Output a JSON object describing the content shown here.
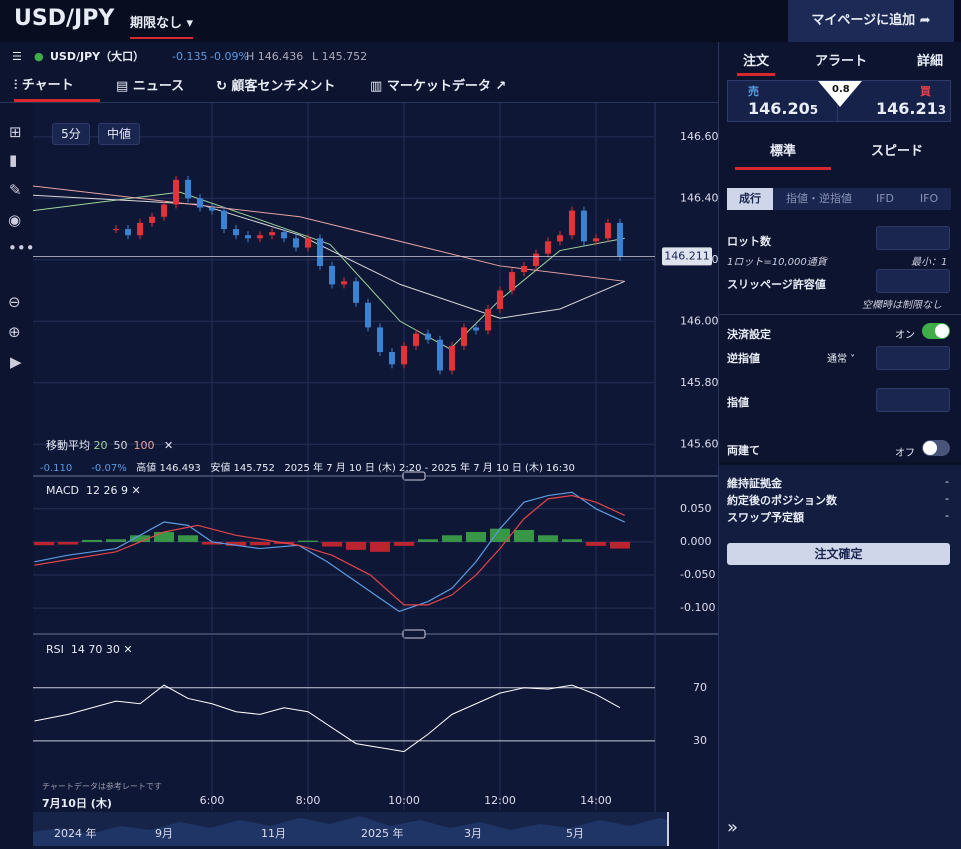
{
  "header": {
    "symbol": "USD/JPY",
    "period": "期限なし",
    "button": "マイページに追加"
  },
  "subbar": {
    "symbol": "USD/JPY（大口）",
    "change": "-0.135",
    "change_pct": "-0.09%",
    "high": "H 146.436",
    "low": "L 145.752"
  },
  "tabs": [
    "チャート",
    "ニュース",
    "顧客センチメント",
    "マーケットデータ"
  ],
  "chart_overlay": {
    "interval": "5分",
    "price_type": "中値",
    "ma_label": "移動平均",
    "info_change": "-0.110",
    "info_pct": "-0.07%",
    "info_high": "高値 146.493",
    "info_low": "安値 145.752",
    "info_range": "2025 年 7 月 10 日 (木) 2:20 - 2025 年 7 月 10 日 (木) 16:30",
    "macd_label": "MACD",
    "macd_params": "12  26  9",
    "rsi_label": "RSI",
    "rsi_params": "14  70  30",
    "note": "チャートデータは参考レートです",
    "date_label": "7月10日 (木)"
  },
  "navigator": [
    "2024 年",
    "9月",
    "11月",
    "2025 年",
    "3月",
    "5月"
  ],
  "chart_data": [
    {
      "type": "candlestick",
      "xlim": [
        2.27,
        15.23
      ],
      "ylim": [
        145.5,
        146.71
      ],
      "xticks": [
        {
          "value": 6,
          "label": "6:00"
        },
        {
          "value": 8,
          "label": "8:00"
        },
        {
          "value": 10,
          "label": "10:00"
        },
        {
          "value": 12,
          "label": "12:00"
        },
        {
          "value": 14,
          "label": "14:00"
        }
      ],
      "yticks": [
        {
          "value": 145.6,
          "label": "145.600"
        },
        {
          "value": 145.8,
          "label": "145.800"
        },
        {
          "value": 146.0,
          "label": "146.000"
        },
        {
          "value": 146.2,
          "label": "146.200"
        },
        {
          "value": 146.4,
          "label": "146.400"
        },
        {
          "value": 146.6,
          "label": "146.600"
        }
      ],
      "grid": true,
      "last_price": {
        "value": 146.211,
        "label": "146.211"
      },
      "x": [
        4,
        4.25,
        4.5,
        4.75,
        5,
        5.25,
        5.5,
        5.75,
        6,
        6.25,
        6.5,
        6.75,
        7,
        7.25,
        7.5,
        7.75,
        8,
        8.25,
        8.5,
        8.75,
        9,
        9.25,
        9.5,
        9.75,
        10,
        10.25,
        10.5,
        10.75,
        11,
        11.25,
        11.5,
        11.75,
        12,
        12.25,
        12.5,
        12.75,
        13,
        13.25,
        13.5,
        13.75,
        14,
        14.25,
        14.5
      ],
      "up_color": "#e0333a",
      "down_color": "#3b82d0",
      "values": [
        146.3,
        146.28,
        146.32,
        146.34,
        146.38,
        146.46,
        146.4,
        146.37,
        146.36,
        146.3,
        146.28,
        146.27,
        146.28,
        146.29,
        146.27,
        146.24,
        146.27,
        146.18,
        146.12,
        146.13,
        146.06,
        145.98,
        145.9,
        145.86,
        145.92,
        145.96,
        145.94,
        145.84,
        145.92,
        145.98,
        145.97,
        146.04,
        146.1,
        146.16,
        146.18,
        146.22,
        146.26,
        146.28,
        146.36,
        146.26,
        146.27,
        146.32,
        146.21
      ],
      "series": [
        {
          "name": "20",
          "color": "#9fd39b",
          "x": [
            2.27,
            5.33,
            7.0,
            8.46,
            9.92,
            10.96,
            12,
            13.25,
            14.6
          ],
          "values": [
            146.36,
            146.42,
            146.33,
            146.25,
            146.0,
            145.91,
            146.07,
            146.23,
            146.27
          ]
        },
        {
          "name": "50",
          "color": "#d8d8d8",
          "x": [
            2.27,
            5.75,
            7.83,
            9.92,
            12,
            13.25,
            14.6
          ],
          "values": [
            146.41,
            146.38,
            146.28,
            146.12,
            146.01,
            146.04,
            146.13
          ]
        },
        {
          "name": "100",
          "color": "#e5a3a3",
          "x": [
            2.27,
            7.83,
            12,
            14.6
          ],
          "values": [
            146.44,
            146.34,
            146.18,
            146.13
          ]
        }
      ]
    },
    {
      "type": "macd",
      "xlim": [
        2.27,
        15.23
      ],
      "ylim": [
        -0.136,
        0.098
      ],
      "yticks": [
        {
          "value": 0.05,
          "label": "0.050"
        },
        {
          "value": 0,
          "label": "0.000"
        },
        {
          "value": -0.05,
          "label": "-0.050"
        },
        {
          "value": -0.1,
          "label": "-0.100"
        }
      ],
      "series": [
        {
          "kind": "bar",
          "up_color": "#3fae49",
          "down_color": "#d8282e",
          "x": [
            2.5,
            3,
            3.5,
            4,
            4.5,
            5,
            5.5,
            6,
            6.5,
            7,
            7.5,
            8,
            8.5,
            9,
            9.5,
            10,
            10.5,
            11,
            11.5,
            12,
            12.5,
            13,
            13.5,
            14,
            14.5
          ],
          "values": [
            -0.005,
            -0.004,
            0.003,
            0.004,
            0.01,
            0.015,
            0.01,
            -0.004,
            -0.006,
            -0.005,
            -0.003,
            0.002,
            -0.007,
            -0.012,
            -0.015,
            -0.006,
            0.004,
            0.01,
            0.015,
            0.02,
            0.018,
            0.01,
            0.004,
            -0.006,
            -0.01
          ]
        },
        {
          "kind": "line",
          "color": "#5b9be0",
          "x": [
            2.3,
            3,
            4,
            5,
            5.5,
            6,
            7,
            7.8,
            8.4,
            9,
            9.9,
            10.5,
            11,
            11.5,
            12,
            12.5,
            13,
            13.5,
            14,
            14.6
          ],
          "values": [
            -0.03,
            -0.02,
            -0.01,
            0.03,
            0.025,
            0.0,
            -0.01,
            -0.005,
            -0.03,
            -0.06,
            -0.105,
            -0.09,
            -0.07,
            -0.03,
            0.02,
            0.06,
            0.07,
            0.075,
            0.05,
            0.03
          ]
        },
        {
          "kind": "line",
          "color": "#e0454a",
          "x": [
            2.3,
            4,
            5,
            5.7,
            6.5,
            7.8,
            8.5,
            9.3,
            10,
            10.5,
            11,
            11.5,
            12,
            12.5,
            13,
            13.5,
            14,
            14.6
          ],
          "values": [
            -0.035,
            -0.015,
            0.015,
            0.025,
            0.01,
            -0.005,
            -0.02,
            -0.05,
            -0.095,
            -0.095,
            -0.08,
            -0.05,
            -0.01,
            0.035,
            0.065,
            0.07,
            0.06,
            0.04
          ]
        }
      ]
    },
    {
      "type": "rsi",
      "xlim": [
        2.27,
        15.23
      ],
      "ylim": [
        -22,
        109
      ],
      "yticks": [
        70,
        30
      ],
      "series": [
        {
          "kind": "line",
          "color": "#ffffff",
          "x": [
            2.3,
            3,
            3.5,
            4,
            4.5,
            5,
            5.5,
            6,
            6.5,
            7,
            7.5,
            8,
            8.5,
            9,
            9.5,
            10,
            10.5,
            11,
            11.5,
            12,
            12.5,
            13,
            13.5,
            14,
            14.5
          ],
          "values": [
            45,
            50,
            55,
            60,
            58,
            72,
            62,
            58,
            52,
            50,
            55,
            52,
            40,
            28,
            25,
            22,
            35,
            50,
            58,
            66,
            70,
            69,
            72,
            65,
            55
          ]
        }
      ]
    }
  ],
  "order": {
    "tabs": [
      "注文",
      "アラート",
      "詳細"
    ],
    "sell_label": "売",
    "sell_main": "146.20",
    "sell_sub": "5",
    "spread": "0.8",
    "buy_label": "買",
    "buy_main": "146.21",
    "buy_sub": "3",
    "modes": [
      "標準",
      "スピード"
    ],
    "types": [
      "成行",
      "指値・逆指値",
      "IFD",
      "IFO"
    ],
    "lot": "ロット数",
    "lot_note": "1ロット=10,000通貨",
    "lot_min": "最小：1",
    "slip": "スリッページ許容値",
    "slip_note": "空欄時は制限なし",
    "settle": "決済設定",
    "on": "オン",
    "stop": "逆指値",
    "stop_type": "通常",
    "limit": "指値",
    "hedge": "両建て",
    "off": "オフ",
    "info": [
      [
        "維持証拠金",
        "-"
      ],
      [
        "約定後のポジション数",
        "-"
      ],
      [
        "スワップ予定額",
        "-"
      ]
    ],
    "confirm": "注文確定"
  }
}
